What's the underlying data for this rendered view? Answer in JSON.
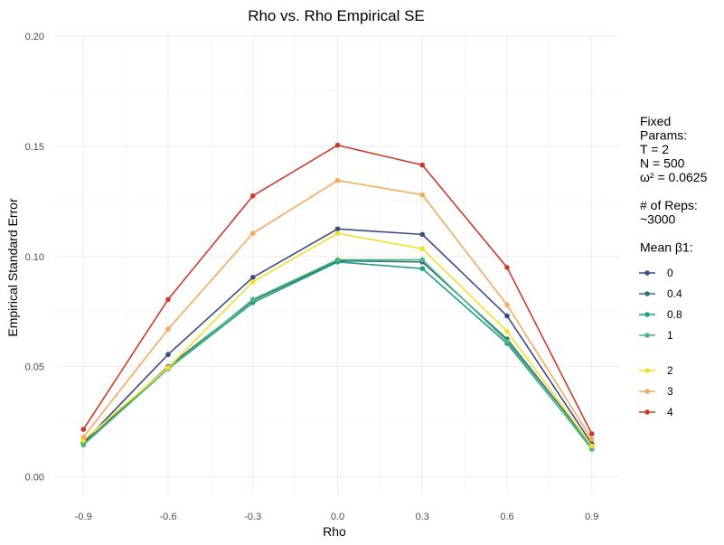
{
  "chart_data": {
    "type": "line",
    "title": "Rho vs. Rho Empirical SE",
    "xlabel": "Rho",
    "ylabel": "Empirical Standard Error",
    "x": [
      -0.9,
      -0.6,
      -0.3,
      0.0,
      0.3,
      0.6,
      0.9
    ],
    "x_ticks": [
      "-0.9",
      "-0.6",
      "-0.3",
      "0.0",
      "0.3",
      "0.6",
      "0.9"
    ],
    "y_ticks": [
      "0.00",
      "0.05",
      "0.10",
      "0.15",
      "0.20"
    ],
    "xlim": [
      -1.0,
      1.0
    ],
    "ylim": [
      -0.008,
      0.2
    ],
    "grid": true,
    "legend_position": "right",
    "legend": {
      "lines": [
        "Fixed",
        "Params:",
        "T = 2",
        "N = 500",
        "ω² = 0.0625",
        "",
        "# of Reps:",
        "~3000",
        "",
        "Mean β1:"
      ]
    },
    "series": [
      {
        "name": "0",
        "color": "#3b4a85",
        "values": [
          0.0155,
          0.0555,
          0.0905,
          0.1125,
          0.11,
          0.073,
          0.015
        ]
      },
      {
        "name": "0.4",
        "color": "#2f6f7e",
        "values": [
          0.015,
          0.05,
          0.08,
          0.098,
          0.0975,
          0.0625,
          0.014
        ]
      },
      {
        "name": "0.8",
        "color": "#1f9e89",
        "values": [
          0.0145,
          0.049,
          0.079,
          0.0975,
          0.0945,
          0.0605,
          0.013
        ]
      },
      {
        "name": "1",
        "color": "#4cb87a",
        "values": [
          0.0145,
          0.049,
          0.0805,
          0.0985,
          0.0985,
          0.0615,
          0.0125
        ]
      },
      {
        "name": "2",
        "color": "#f5de2a",
        "values": [
          0.0165,
          0.0495,
          0.0885,
          0.1105,
          0.1035,
          0.066,
          0.014
        ]
      },
      {
        "name": "3",
        "color": "#f4aa5b",
        "values": [
          0.018,
          0.067,
          0.1105,
          0.1345,
          0.128,
          0.078,
          0.017
        ]
      },
      {
        "name": "4",
        "color": "#cc3b2c",
        "values": [
          0.0215,
          0.0805,
          0.1275,
          0.1505,
          0.1415,
          0.095,
          0.0195
        ]
      }
    ]
  }
}
